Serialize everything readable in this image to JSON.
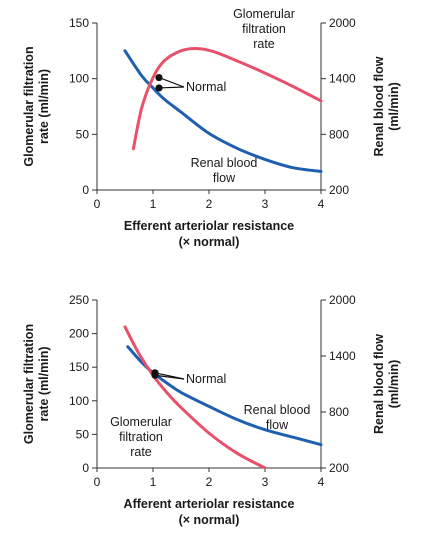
{
  "chart_data": [
    {
      "type": "line",
      "xlabel": "Efferent arteriolar resistance",
      "xlabel_sub": "(× normal)",
      "ylabel_left": "Glomerular filtration rate (ml/min)",
      "ylabel_right": "Renal blood flow (ml/min)",
      "xlim": [
        0,
        4
      ],
      "ylim_left": [
        0,
        150
      ],
      "ylim_right": [
        200,
        2000
      ],
      "xticks": [
        0,
        1,
        2,
        3,
        4
      ],
      "yticks_left": [
        0,
        50,
        100,
        150
      ],
      "yticks_right": [
        200,
        800,
        1400,
        2000
      ],
      "grid": false,
      "series": [
        {
          "name": "Glomerular filtration rate",
          "axis": "left",
          "color": "#e8516a",
          "x": [
            0.65,
            0.8,
            1.0,
            1.2,
            1.5,
            1.8,
            2.1,
            2.5,
            3.0,
            3.5,
            4.0
          ],
          "y": [
            37,
            74,
            101,
            116,
            125,
            127,
            124,
            116,
            105,
            93,
            80
          ]
        },
        {
          "name": "Renal blood flow",
          "axis": "right",
          "color": "#1f5fb0",
          "x": [
            0.5,
            0.8,
            1.0,
            1.2,
            1.5,
            2.0,
            2.5,
            3.0,
            3.5,
            4.0
          ],
          "y": [
            1700,
            1430,
            1300,
            1180,
            1040,
            810,
            650,
            530,
            440,
            400
          ]
        }
      ],
      "labels": {
        "gfr": [
          "Glomerular",
          "filtration",
          "rate"
        ],
        "rbf": [
          "Renal blood",
          "flow"
        ],
        "normal": "Normal"
      },
      "normal_x": 1.0
    },
    {
      "type": "line",
      "xlabel": "Afferent arteriolar resistance",
      "xlabel_sub": "(× normal)",
      "ylabel_left": "Glomerular filtration rate (ml/min)",
      "ylabel_right": "Renal blood flow (ml/min)",
      "xlim": [
        0,
        4
      ],
      "ylim_left": [
        0,
        250
      ],
      "ylim_right": [
        200,
        2000
      ],
      "xticks": [
        0,
        1,
        2,
        3,
        4
      ],
      "yticks_left": [
        0,
        50,
        100,
        150,
        200,
        250
      ],
      "yticks_right": [
        200,
        800,
        1400,
        2000
      ],
      "grid": false,
      "series": [
        {
          "name": "Glomerular filtration rate",
          "axis": "left",
          "color": "#e8516a",
          "x": [
            0.5,
            0.75,
            1.0,
            1.25,
            1.5,
            2.0,
            2.5,
            3.0
          ],
          "y": [
            210,
            170,
            138,
            112,
            90,
            52,
            22,
            0
          ]
        },
        {
          "name": "Renal blood flow",
          "axis": "right",
          "color": "#1f5fb0",
          "x": [
            0.55,
            0.8,
            1.0,
            1.25,
            1.5,
            2.0,
            2.5,
            3.0,
            3.5,
            4.0
          ],
          "y": [
            1500,
            1330,
            1220,
            1110,
            1010,
            860,
            720,
            610,
            530,
            450
          ]
        }
      ],
      "labels": {
        "gfr": [
          "Glomerular",
          "filtration",
          "rate"
        ],
        "rbf": [
          "Renal blood",
          "flow"
        ],
        "normal": "Normal"
      },
      "normal_x": 1.0
    }
  ]
}
